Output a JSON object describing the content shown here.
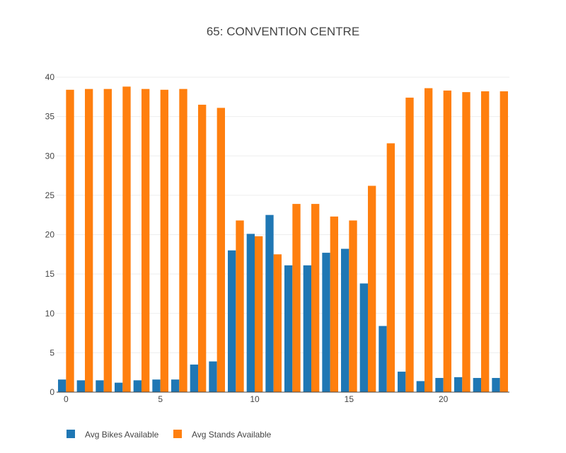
{
  "chart_data": {
    "type": "bar",
    "title": "65: CONVENTION CENTRE",
    "xlabel": "",
    "ylabel": "",
    "x": [
      0,
      1,
      2,
      3,
      4,
      5,
      6,
      7,
      8,
      9,
      10,
      11,
      12,
      13,
      14,
      15,
      16,
      17,
      18,
      19,
      20,
      21,
      22,
      23
    ],
    "x_tick_labels": [
      "0",
      "5",
      "10",
      "15",
      "20"
    ],
    "x_tick_values": [
      0,
      5,
      10,
      15,
      20
    ],
    "y_tick_labels": [
      "0",
      "5",
      "10",
      "15",
      "20",
      "25",
      "30",
      "35",
      "40"
    ],
    "y_tick_values": [
      0,
      5,
      10,
      15,
      20,
      25,
      30,
      35,
      40
    ],
    "ylim": [
      0,
      40
    ],
    "xlim": [
      -0.5,
      23.5
    ],
    "grid": "horizontal",
    "legend_position": "bottom-left",
    "series": [
      {
        "name": "Avg Bikes Available",
        "color": "#1f77b4",
        "values": [
          1.6,
          1.5,
          1.5,
          1.2,
          1.5,
          1.6,
          1.6,
          3.5,
          3.9,
          18.0,
          20.1,
          22.5,
          16.1,
          16.1,
          17.7,
          18.2,
          13.8,
          8.4,
          2.6,
          1.4,
          1.8,
          1.9,
          1.8,
          1.8
        ]
      },
      {
        "name": "Avg Stands Available",
        "color": "#ff7f0e",
        "values": [
          38.4,
          38.5,
          38.5,
          38.8,
          38.5,
          38.4,
          38.5,
          36.5,
          36.1,
          21.8,
          19.8,
          17.5,
          23.9,
          23.9,
          22.3,
          21.8,
          26.2,
          31.6,
          37.4,
          38.6,
          38.3,
          38.1,
          38.2,
          38.2
        ]
      }
    ]
  }
}
